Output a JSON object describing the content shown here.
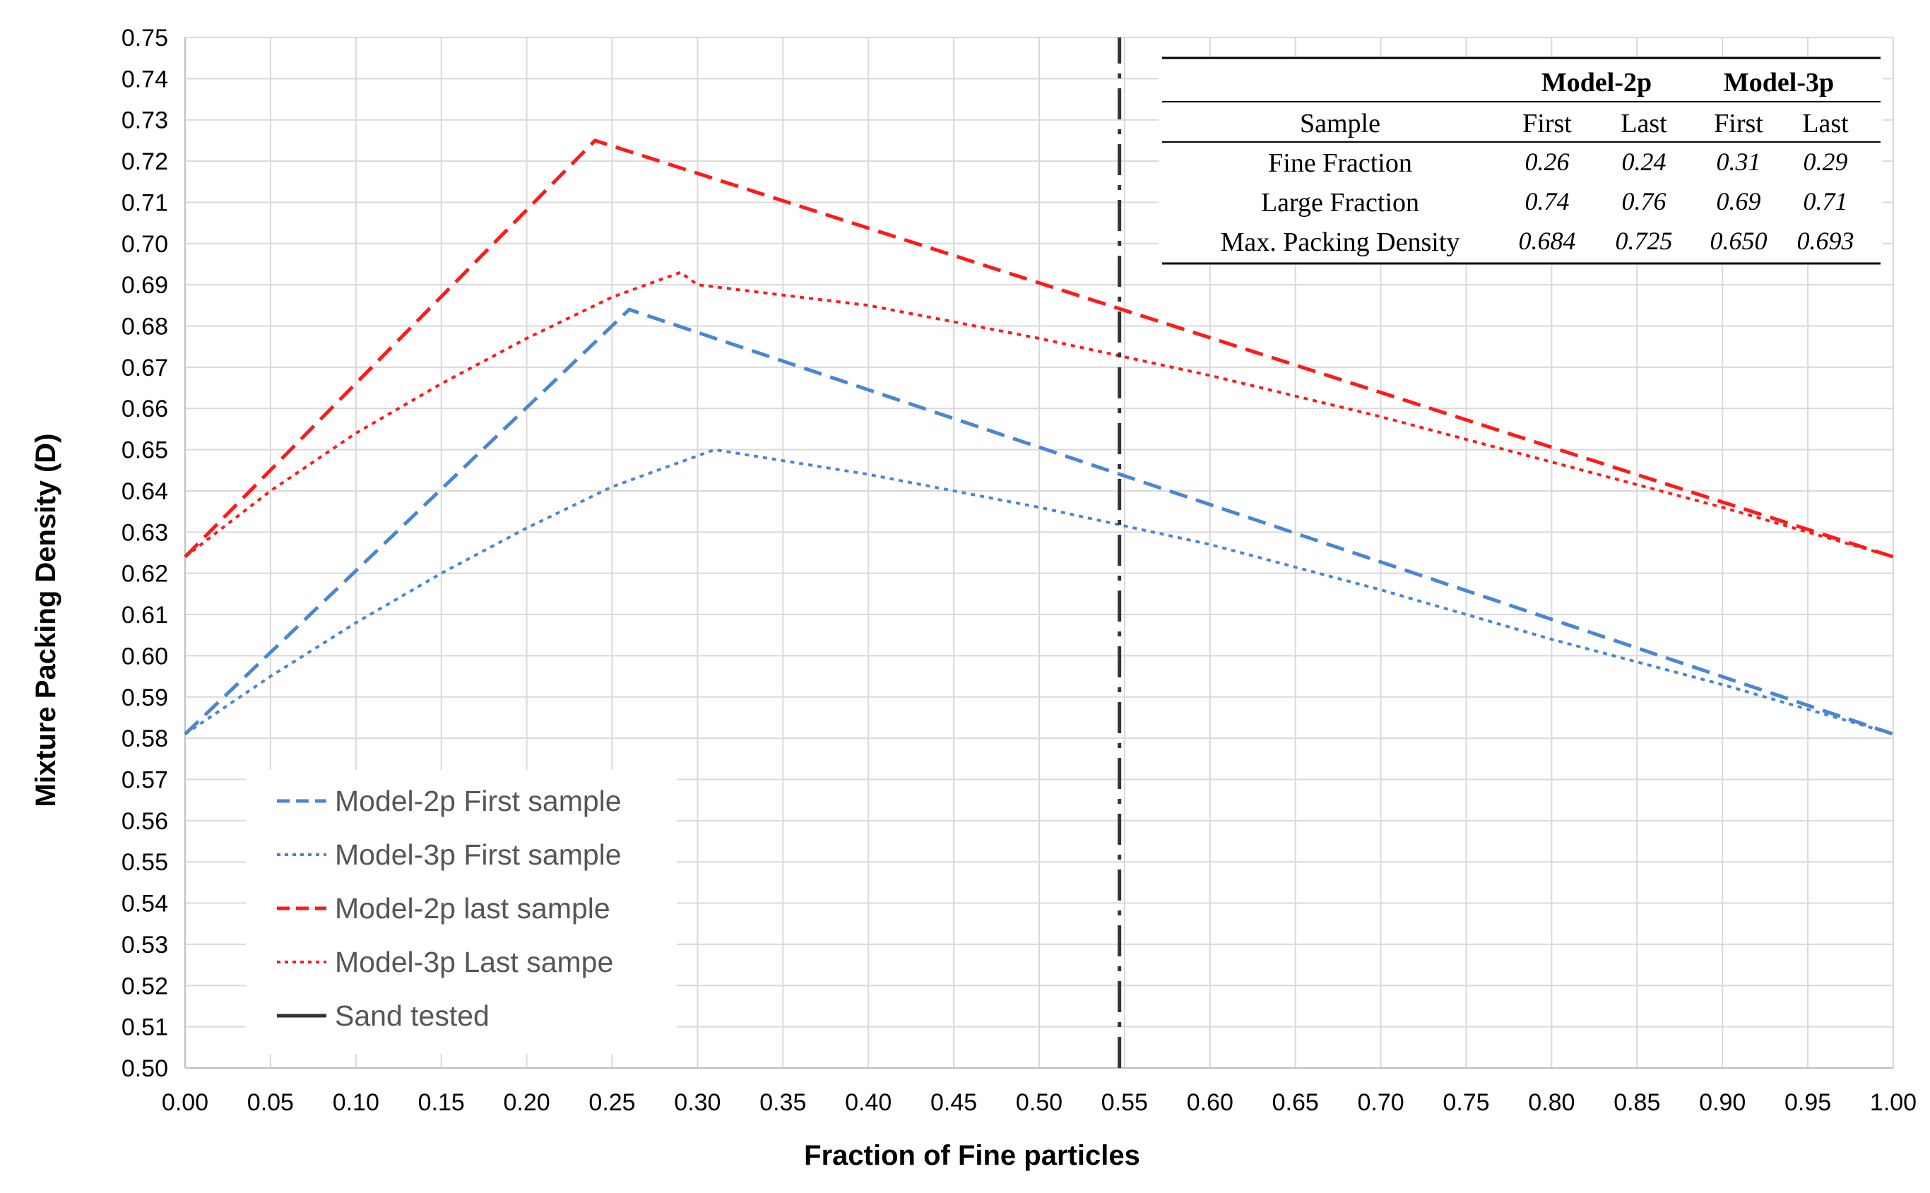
{
  "chart_data": {
    "type": "line",
    "xlabel": "Fraction of  Fine particles",
    "ylabel": "Mixture Packing Density (D)",
    "xlim": [
      0,
      1
    ],
    "ylim": [
      0.5,
      0.75
    ],
    "x_ticks": [
      "0.00",
      "0.05",
      "0.10",
      "0.15",
      "0.20",
      "0.25",
      "0.30",
      "0.35",
      "0.40",
      "0.45",
      "0.50",
      "0.55",
      "0.60",
      "0.65",
      "0.70",
      "0.75",
      "0.80",
      "0.85",
      "0.90",
      "0.95",
      "1.00"
    ],
    "y_ticks": [
      "0.50",
      "0.51",
      "0.52",
      "0.53",
      "0.54",
      "0.55",
      "0.56",
      "0.57",
      "0.58",
      "0.59",
      "0.60",
      "0.61",
      "0.62",
      "0.63",
      "0.64",
      "0.65",
      "0.66",
      "0.67",
      "0.68",
      "0.69",
      "0.70",
      "0.71",
      "0.72",
      "0.73",
      "0.74",
      "0.75"
    ],
    "grid": true,
    "legend_position": "bottom-left",
    "series": [
      {
        "name": "Model-2p First sample",
        "color": "#4a86d4",
        "style": "dashed",
        "x": [
          0,
          0.26,
          1
        ],
        "y": [
          0.581,
          0.684,
          0.581
        ]
      },
      {
        "name": "Model-3p First sample",
        "color": "#4a86d4",
        "style": "dotted",
        "x": [
          0,
          0.05,
          0.1,
          0.15,
          0.2,
          0.25,
          0.31,
          0.4,
          0.5,
          0.6,
          0.7,
          0.8,
          0.9,
          1.0
        ],
        "y": [
          0.581,
          0.595,
          0.608,
          0.62,
          0.631,
          0.641,
          0.65,
          0.644,
          0.636,
          0.627,
          0.616,
          0.604,
          0.593,
          0.581
        ]
      },
      {
        "name": "Model-2p last sample",
        "color": "#ff1a1a",
        "style": "dashed",
        "x": [
          0,
          0.24,
          1
        ],
        "y": [
          0.624,
          0.725,
          0.624
        ]
      },
      {
        "name": "Model-3p Last sampe",
        "color": "#ff1a1a",
        "style": "dotted",
        "x": [
          0,
          0.05,
          0.1,
          0.15,
          0.2,
          0.25,
          0.29,
          0.3,
          0.4,
          0.5,
          0.6,
          0.7,
          0.8,
          0.9,
          1.0
        ],
        "y": [
          0.624,
          0.64,
          0.654,
          0.666,
          0.677,
          0.687,
          0.693,
          0.69,
          0.685,
          0.677,
          0.668,
          0.658,
          0.647,
          0.636,
          0.624
        ]
      },
      {
        "name": "Sand tested",
        "color": "#333333",
        "style": "dashdot",
        "x": [
          0.547,
          0.547
        ],
        "y": [
          0.5,
          0.75
        ]
      }
    ],
    "table": {
      "group_headers": [
        "Model-2p",
        "Model-3p"
      ],
      "column_headers": [
        "Sample",
        "First",
        "Last",
        "First",
        "Last"
      ],
      "rows": [
        {
          "label": "Fine Fraction",
          "values": [
            "0.26",
            "0.24",
            "0.31",
            "0.29"
          ]
        },
        {
          "label": "Large Fraction",
          "values": [
            "0.74",
            "0.76",
            "0.69",
            "0.71"
          ]
        },
        {
          "label": "Max. Packing Density",
          "values": [
            "0.684",
            "0.725",
            "0.650",
            "0.693"
          ]
        }
      ]
    }
  }
}
